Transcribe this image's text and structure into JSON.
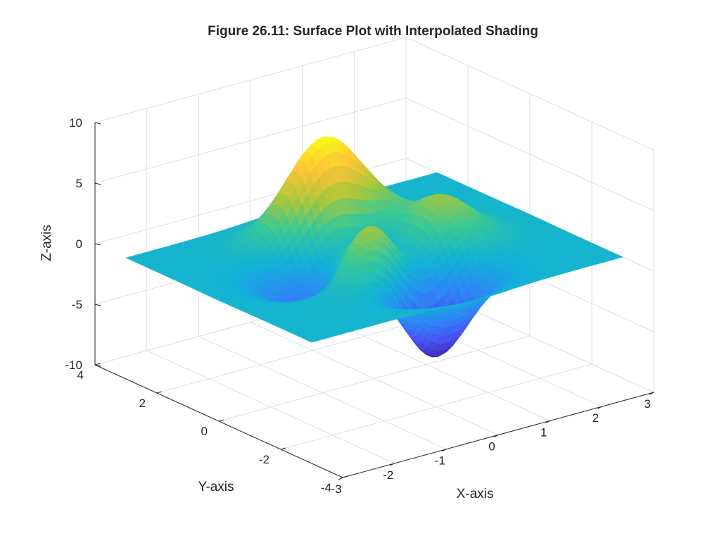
{
  "chart_data": {
    "type": "surface",
    "title": "Figure 26.11: Surface Plot with Interpolated Shading",
    "xlabel": "X-axis",
    "ylabel": "Y-axis",
    "zlabel": "Z-axis",
    "xlim": [
      -3,
      3
    ],
    "ylim": [
      -4,
      4
    ],
    "zlim": [
      -10,
      10
    ],
    "x_ticks": [
      -3,
      -2,
      -1,
      0,
      1,
      2,
      3
    ],
    "y_ticks": [
      -4,
      -2,
      0,
      2,
      4
    ],
    "z_ticks": [
      -10,
      -5,
      0,
      5,
      10
    ],
    "x_tick_labels": [
      "-3",
      "-2",
      "-1",
      "0",
      "1",
      "2",
      "3"
    ],
    "y_tick_labels": [
      "-4",
      "-2",
      "0",
      "2",
      "4"
    ],
    "z_tick_labels": [
      "-10",
      "-5",
      "0",
      "5",
      "10"
    ],
    "grid": true,
    "shading": "interp",
    "colormap": "parula",
    "function": "peaks",
    "surface_x_range": [
      -3,
      3
    ],
    "surface_y_range": [
      -3,
      3
    ],
    "approx_z_max": 8.1,
    "approx_z_min": -6.5
  }
}
